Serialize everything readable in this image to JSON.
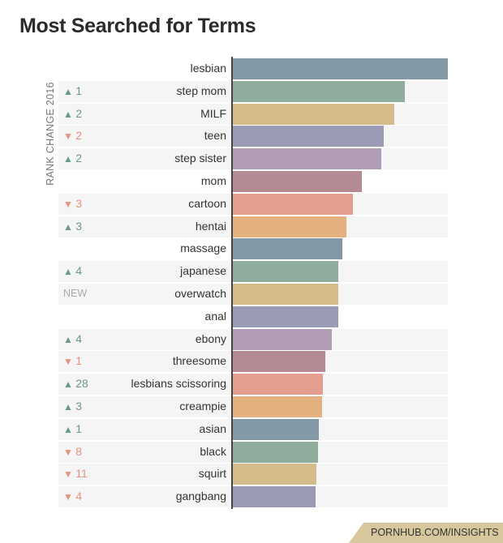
{
  "chart_data": {
    "type": "bar",
    "orientation": "horizontal",
    "title": "Most Searched for Terms",
    "ylabel": "RANK CHANGE 2016",
    "xlabel": "",
    "xlim": [
      0,
      100
    ],
    "categories": [
      "lesbian",
      "step mom",
      "MILF",
      "teen",
      "step sister",
      "mom",
      "cartoon",
      "hentai",
      "massage",
      "japanese",
      "overwatch",
      "anal",
      "ebony",
      "threesome",
      "lesbians scissoring",
      "creampie",
      "asian",
      "black",
      "squirt",
      "gangbang"
    ],
    "values": [
      100,
      80,
      75,
      70,
      69,
      60,
      56,
      53,
      51,
      49,
      49,
      49,
      46,
      43,
      42,
      41.5,
      40,
      39.5,
      39,
      38.5
    ],
    "rank_change": [
      {
        "dir": "",
        "text": ""
      },
      {
        "dir": "up",
        "text": "1"
      },
      {
        "dir": "up",
        "text": "2"
      },
      {
        "dir": "down",
        "text": "2"
      },
      {
        "dir": "up",
        "text": "2"
      },
      {
        "dir": "",
        "text": ""
      },
      {
        "dir": "down",
        "text": "3"
      },
      {
        "dir": "up",
        "text": "3"
      },
      {
        "dir": "",
        "text": ""
      },
      {
        "dir": "up",
        "text": "4"
      },
      {
        "dir": "new",
        "text": "NEW"
      },
      {
        "dir": "",
        "text": ""
      },
      {
        "dir": "up",
        "text": "4"
      },
      {
        "dir": "down",
        "text": "1"
      },
      {
        "dir": "up",
        "text": "28"
      },
      {
        "dir": "up",
        "text": "3"
      },
      {
        "dir": "up",
        "text": "1"
      },
      {
        "dir": "down",
        "text": "8"
      },
      {
        "dir": "down",
        "text": "11"
      },
      {
        "dir": "down",
        "text": "4"
      }
    ],
    "grid": false,
    "legend": "none"
  },
  "colors": {
    "bars": [
      "#8499a6",
      "#8fac9c",
      "#d4bc8a",
      "#9a9ab5",
      "#b09db5",
      "#b48a95",
      "#e59d8e",
      "#e4b07f"
    ],
    "up": "#6a9a86",
    "down": "#e8917e",
    "new": "#aaaaaa"
  },
  "footer": {
    "text": "PORNHUB.COM/INSIGHTS"
  }
}
